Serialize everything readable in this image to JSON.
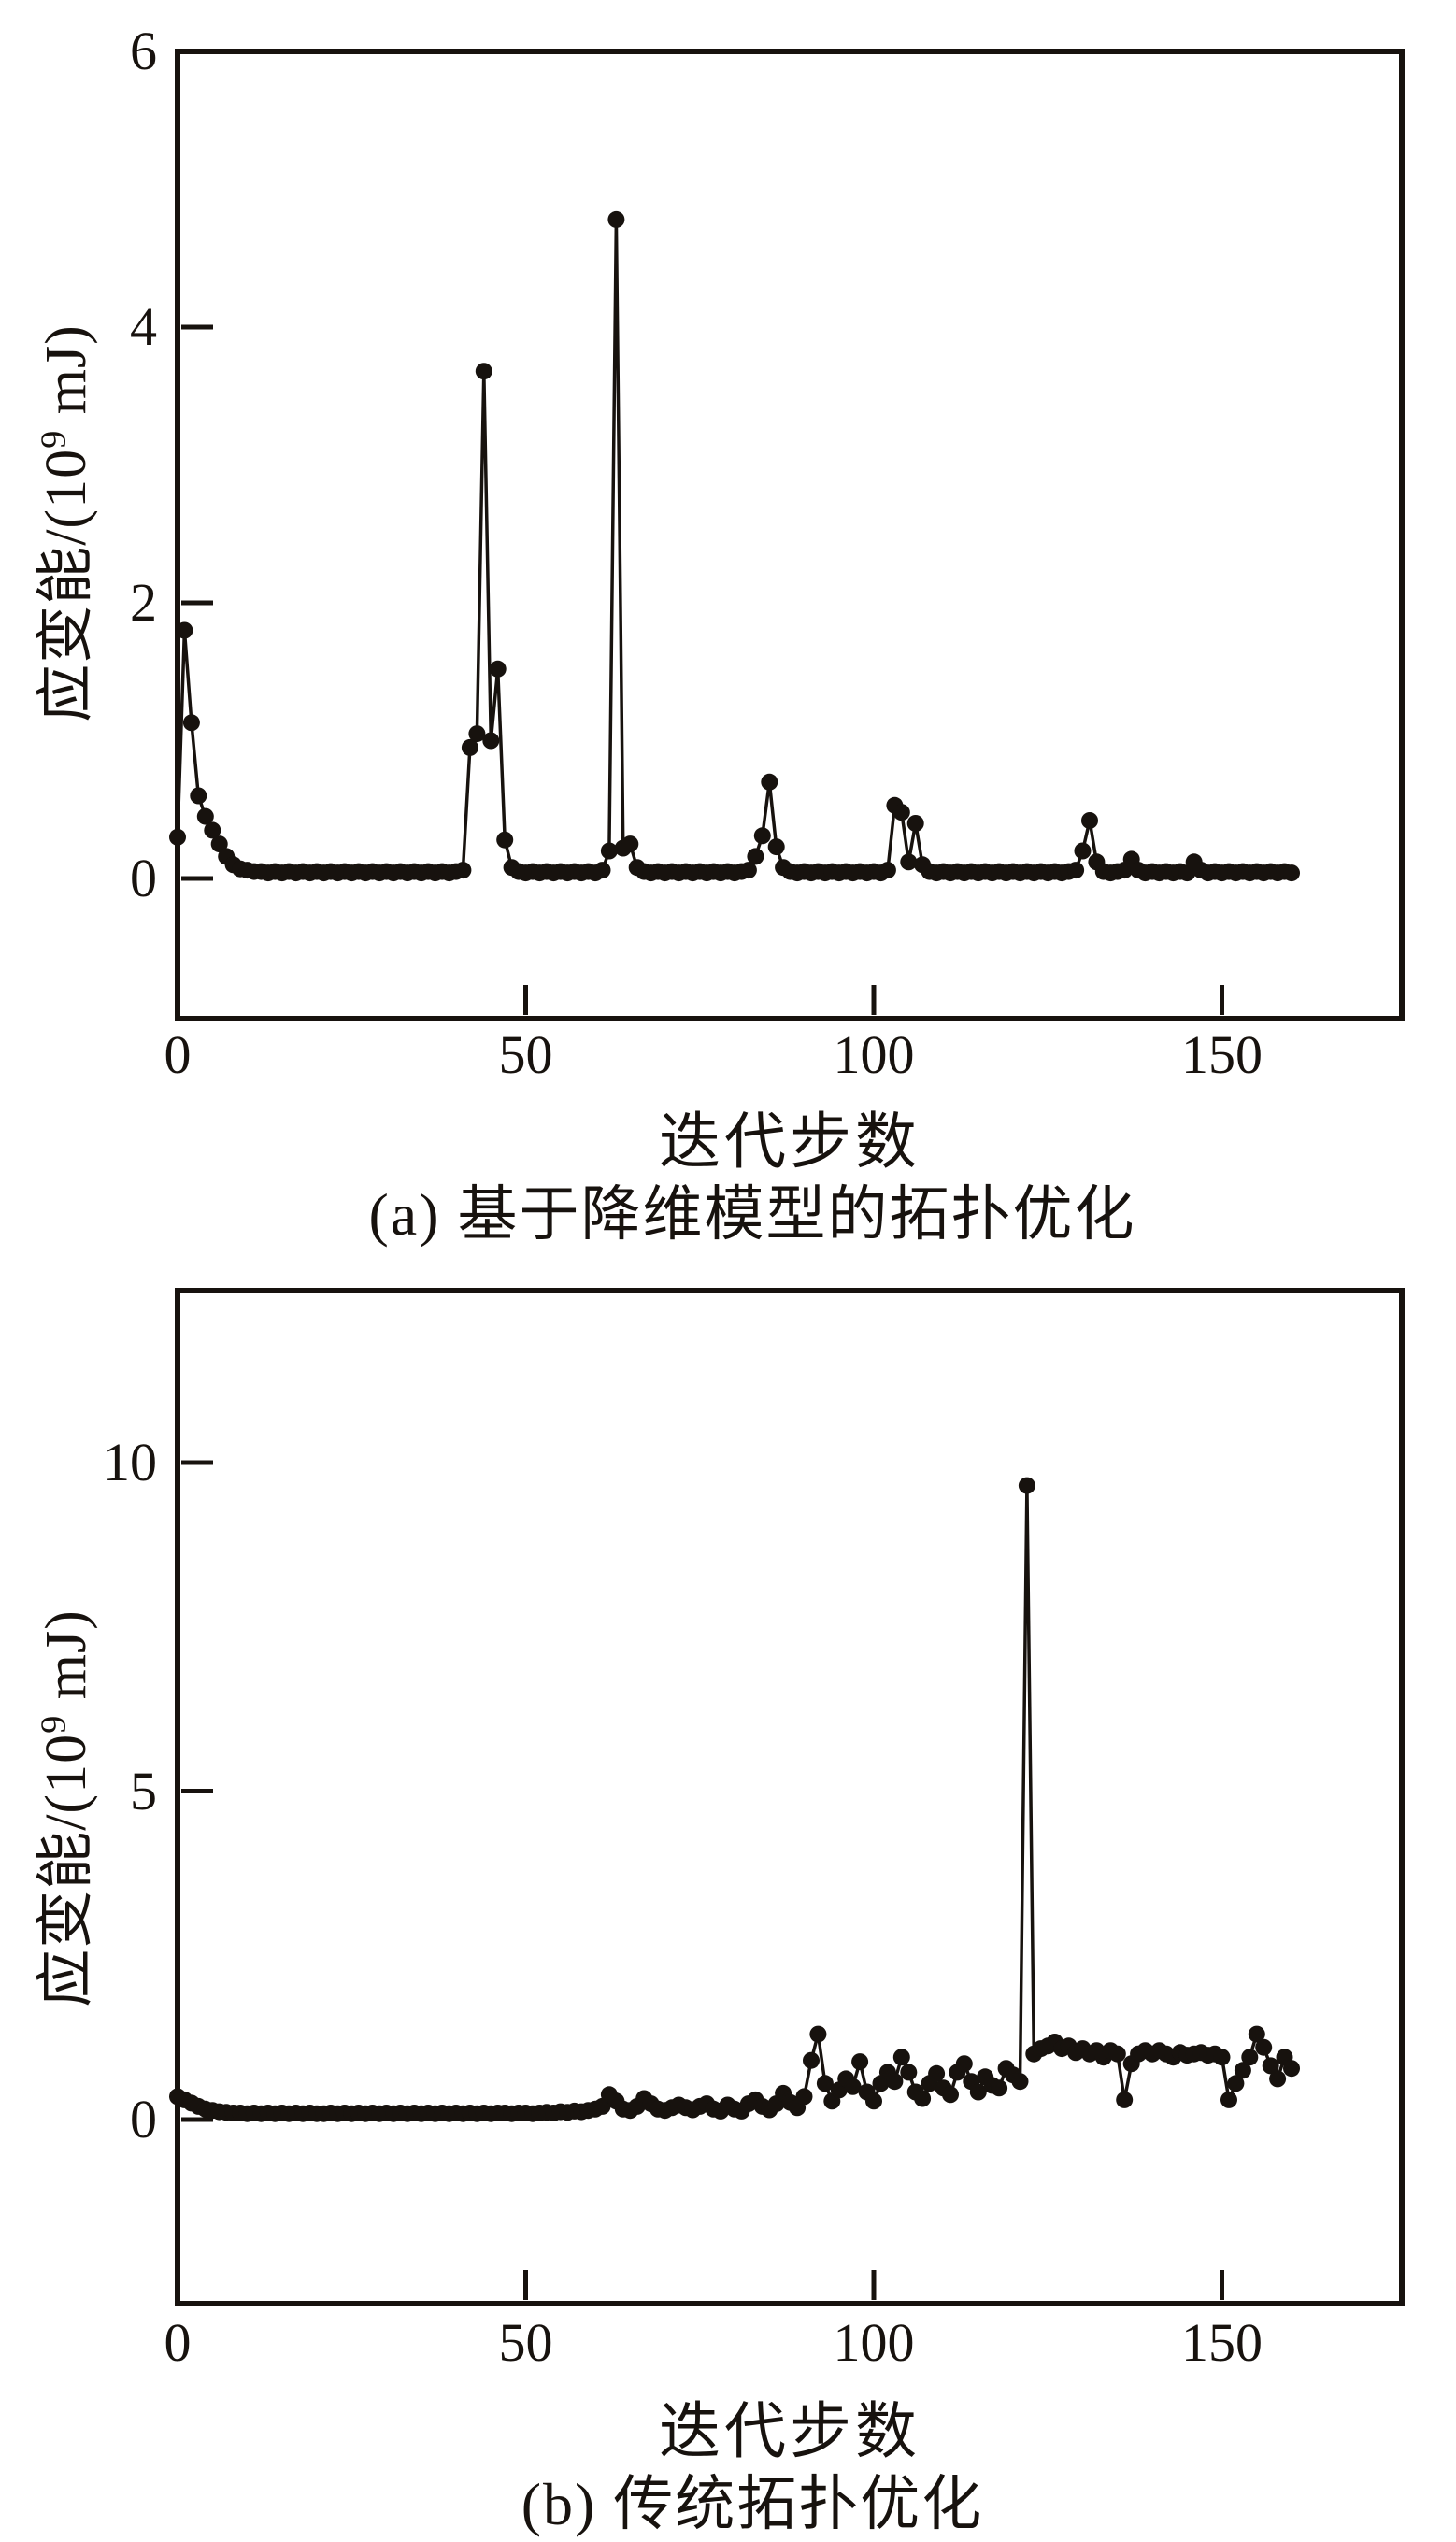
{
  "page": {
    "background": "#ffffff",
    "ink": "#17120e"
  },
  "chart_data": [
    {
      "id": "a",
      "type": "scatter",
      "title": "(a) 基于降维模型的拓扑优化",
      "xlabel": "迭代步数",
      "ylabel": "应变能/(10⁹ mJ)",
      "ylabel_parts": {
        "pre": "应变能/(10",
        "sup": "9",
        "post": " mJ)"
      },
      "legend": null,
      "grid": "off",
      "marker": "filled-circle",
      "line_style": "solid",
      "color": "#17120e",
      "x_ticks": [
        0,
        50,
        100,
        150
      ],
      "y_ticks": [
        0,
        2,
        4,
        6
      ],
      "xlim": [
        0,
        176
      ],
      "ylim": [
        -1.02,
        6.0
      ],
      "x_start": 0,
      "x_step": 1,
      "y": [
        0.3,
        1.8,
        1.13,
        0.6,
        0.45,
        0.35,
        0.25,
        0.16,
        0.1,
        0.07,
        0.06,
        0.05,
        0.05,
        0.04,
        0.05,
        0.04,
        0.05,
        0.04,
        0.05,
        0.04,
        0.05,
        0.04,
        0.05,
        0.04,
        0.05,
        0.04,
        0.05,
        0.04,
        0.05,
        0.04,
        0.05,
        0.04,
        0.05,
        0.04,
        0.05,
        0.04,
        0.05,
        0.04,
        0.05,
        0.04,
        0.05,
        0.06,
        0.95,
        1.05,
        3.68,
        1.0,
        1.52,
        0.28,
        0.08,
        0.05,
        0.04,
        0.05,
        0.04,
        0.05,
        0.04,
        0.05,
        0.04,
        0.05,
        0.04,
        0.05,
        0.04,
        0.06,
        0.2,
        4.78,
        0.22,
        0.25,
        0.08,
        0.05,
        0.04,
        0.05,
        0.04,
        0.05,
        0.04,
        0.05,
        0.04,
        0.05,
        0.04,
        0.05,
        0.04,
        0.05,
        0.04,
        0.05,
        0.06,
        0.16,
        0.31,
        0.7,
        0.23,
        0.08,
        0.05,
        0.04,
        0.05,
        0.04,
        0.05,
        0.04,
        0.05,
        0.04,
        0.05,
        0.04,
        0.05,
        0.04,
        0.05,
        0.04,
        0.06,
        0.53,
        0.48,
        0.12,
        0.4,
        0.1,
        0.05,
        0.04,
        0.05,
        0.04,
        0.05,
        0.04,
        0.05,
        0.04,
        0.05,
        0.04,
        0.05,
        0.04,
        0.05,
        0.04,
        0.05,
        0.04,
        0.05,
        0.04,
        0.05,
        0.04,
        0.05,
        0.06,
        0.2,
        0.42,
        0.12,
        0.05,
        0.04,
        0.05,
        0.06,
        0.14,
        0.06,
        0.04,
        0.05,
        0.04,
        0.05,
        0.04,
        0.05,
        0.04,
        0.12,
        0.06,
        0.04,
        0.05,
        0.04,
        0.05,
        0.04,
        0.05,
        0.04,
        0.05,
        0.04,
        0.05,
        0.04,
        0.05,
        0.04
      ]
    },
    {
      "id": "b",
      "type": "scatter",
      "title": "(b) 传统拓扑优化",
      "xlabel": "迭代步数",
      "ylabel": "应变能/(10⁹ mJ)",
      "ylabel_parts": {
        "pre": "应变能/(10",
        "sup": "9",
        "post": " mJ)"
      },
      "legend": null,
      "grid": "off",
      "marker": "filled-circle",
      "line_style": "solid",
      "color": "#17120e",
      "x_ticks": [
        0,
        50,
        100,
        150
      ],
      "y_ticks": [
        0,
        5,
        10
      ],
      "xlim": [
        0,
        176
      ],
      "ylim": [
        -2.8,
        12.6
      ],
      "x_start": 0,
      "x_step": 1,
      "y": [
        0.35,
        0.3,
        0.25,
        0.2,
        0.16,
        0.14,
        0.12,
        0.11,
        0.1,
        0.1,
        0.09,
        0.1,
        0.09,
        0.1,
        0.09,
        0.1,
        0.09,
        0.1,
        0.09,
        0.1,
        0.09,
        0.09,
        0.1,
        0.09,
        0.1,
        0.09,
        0.1,
        0.09,
        0.1,
        0.09,
        0.1,
        0.09,
        0.1,
        0.09,
        0.1,
        0.09,
        0.1,
        0.09,
        0.1,
        0.09,
        0.1,
        0.09,
        0.1,
        0.09,
        0.1,
        0.09,
        0.1,
        0.1,
        0.09,
        0.1,
        0.1,
        0.09,
        0.1,
        0.11,
        0.1,
        0.12,
        0.11,
        0.13,
        0.12,
        0.14,
        0.16,
        0.2,
        0.38,
        0.28,
        0.16,
        0.14,
        0.2,
        0.32,
        0.24,
        0.16,
        0.14,
        0.18,
        0.22,
        0.18,
        0.15,
        0.2,
        0.24,
        0.16,
        0.13,
        0.22,
        0.16,
        0.13,
        0.24,
        0.3,
        0.2,
        0.15,
        0.24,
        0.4,
        0.26,
        0.18,
        0.35,
        0.9,
        1.3,
        0.55,
        0.28,
        0.45,
        0.62,
        0.5,
        0.88,
        0.42,
        0.28,
        0.55,
        0.72,
        0.58,
        0.95,
        0.72,
        0.42,
        0.32,
        0.55,
        0.7,
        0.48,
        0.38,
        0.72,
        0.85,
        0.58,
        0.42,
        0.65,
        0.52,
        0.48,
        0.78,
        0.68,
        0.58,
        9.65,
        1.0,
        1.08,
        1.12,
        1.18,
        1.08,
        1.12,
        1.02,
        1.08,
        1.0,
        1.05,
        0.95,
        1.05,
        1.0,
        0.3,
        0.85,
        1.0,
        1.05,
        1.0,
        1.05,
        1.0,
        0.95,
        1.02,
        0.98,
        1.0,
        1.02,
        0.98,
        1.0,
        0.95,
        0.3,
        0.55,
        0.75,
        0.95,
        1.3,
        1.1,
        0.82,
        0.62,
        0.95,
        0.78
      ]
    }
  ]
}
